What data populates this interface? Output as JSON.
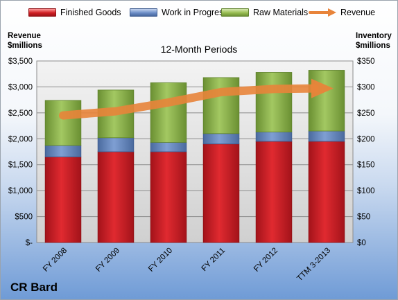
{
  "legend": {
    "finished_goods": "Finished Goods",
    "work_in_progress": "Work in Progress",
    "raw_materials": "Raw Materials",
    "revenue": "Revenue"
  },
  "left_axis_title": "Revenue\n$millions",
  "right_axis_title": "Inventory\n$millions",
  "period_label": "12-Month Periods",
  "company": "CR Bard",
  "colors": {
    "finished_goods": "#c9191f",
    "work_in_progress": "#5f80b8",
    "raw_materials": "#86ac44",
    "revenue": "#e8843a"
  },
  "chart_data": {
    "type": "bar",
    "stacked": true,
    "categories": [
      "FY 2008",
      "FY 2009",
      "FY 2010",
      "FY 2011",
      "FY 2012",
      "TTM 3-2013"
    ],
    "series": [
      {
        "name": "Finished Goods",
        "axis": "right",
        "values": [
          165,
          175,
          175,
          190,
          195,
          195
        ]
      },
      {
        "name": "Work in Progress",
        "axis": "right",
        "values": [
          22,
          27,
          18,
          20,
          18,
          20
        ]
      },
      {
        "name": "Raw Materials",
        "axis": "right",
        "values": [
          87,
          92,
          115,
          108,
          115,
          117
        ]
      },
      {
        "name": "Revenue",
        "type": "line",
        "axis": "left",
        "values": [
          2450,
          2530,
          2700,
          2900,
          2960,
          2970
        ]
      }
    ],
    "left_axis": {
      "min": 0,
      "max": 3500,
      "ticks": [
        "$-",
        "$500",
        "$1,000",
        "$1,500",
        "$2,000",
        "$2,500",
        "$3,000",
        "$3,500"
      ]
    },
    "right_axis": {
      "min": 0,
      "max": 350,
      "ticks": [
        "$0",
        "$50",
        "$100",
        "$150",
        "$200",
        "$250",
        "$300",
        "$350"
      ]
    },
    "grid": true,
    "legend_position": "top"
  }
}
